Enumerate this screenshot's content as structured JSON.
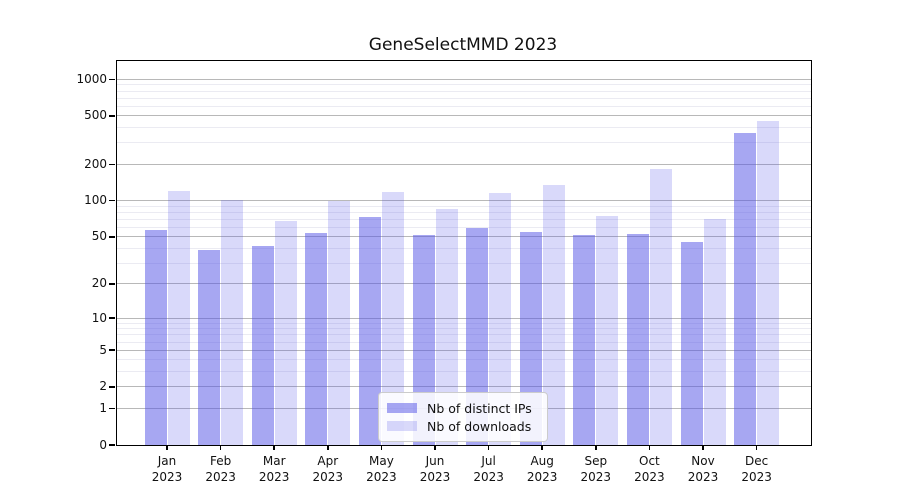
{
  "chart_data": {
    "type": "bar",
    "title": "GeneSelectMMD 2023",
    "categories": [
      "Jan 2023",
      "Feb 2023",
      "Mar 2023",
      "Apr 2023",
      "May 2023",
      "Jun 2023",
      "Jul 2023",
      "Aug 2023",
      "Sep 2023",
      "Oct 2023",
      "Nov 2023",
      "Dec 2023"
    ],
    "series": [
      {
        "name": "Nb of distinct IPs",
        "color": "rgba(80,80,230,0.5)",
        "values": [
          57,
          39,
          42,
          54,
          73,
          52,
          59,
          55,
          52,
          53,
          45,
          364
        ]
      },
      {
        "name": "Nb of downloads",
        "color": "rgba(80,80,230,0.22)",
        "values": [
          120,
          101,
          68,
          100,
          118,
          86,
          117,
          135,
          75,
          184,
          70,
          458
        ]
      }
    ],
    "yscale": "log1p",
    "ylim": [
      0,
      1415
    ],
    "y_major_ticks": [
      0,
      1,
      2,
      5,
      10,
      20,
      50,
      100,
      200,
      500,
      1000
    ],
    "y_minor_ticks": [
      3,
      4,
      6,
      7,
      8,
      9,
      30,
      40,
      60,
      70,
      80,
      90,
      300,
      400,
      600,
      700,
      800,
      900
    ],
    "grid": {
      "major_color": "#b8b8b8",
      "minor_color": "#ebebf2"
    },
    "legend_position": "lower-center"
  }
}
